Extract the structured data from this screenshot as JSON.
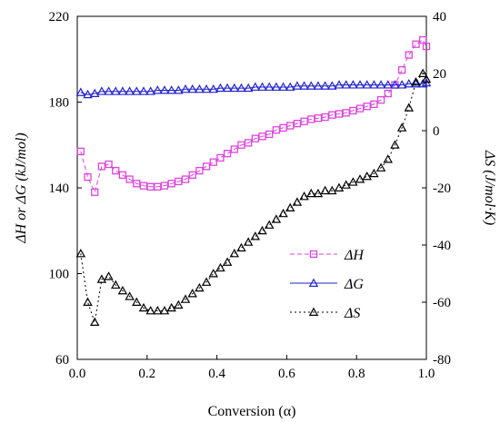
{
  "chart_data": {
    "type": "scatter",
    "xlabel": "Conversion (α)",
    "ylabel_left": "ΔH or ΔG  (kJ/mol)",
    "ylabel_right": "ΔS (J/mol·K)",
    "xlim": [
      0,
      1
    ],
    "ylim_left": [
      60,
      220
    ],
    "ylim_right": [
      -80,
      40
    ],
    "x_ticks": [
      "0.0",
      "0.2",
      "0.4",
      "0.6",
      "0.8",
      "1.0"
    ],
    "y_left_ticks": [
      "60",
      "100",
      "140",
      "180",
      "220"
    ],
    "y_right_ticks": [
      "-80",
      "-60",
      "-40",
      "-20",
      "0",
      "20",
      "40"
    ],
    "grid": false,
    "legend_position": "lower-right",
    "series": [
      {
        "name": "ΔH",
        "axis": "left",
        "color": "#dd44dd",
        "marker": "square",
        "line": "dashed",
        "x": [
          0.01,
          0.03,
          0.05,
          0.07,
          0.09,
          0.11,
          0.13,
          0.15,
          0.17,
          0.19,
          0.21,
          0.23,
          0.25,
          0.27,
          0.29,
          0.31,
          0.33,
          0.35,
          0.37,
          0.39,
          0.41,
          0.43,
          0.45,
          0.47,
          0.49,
          0.51,
          0.53,
          0.55,
          0.57,
          0.59,
          0.61,
          0.63,
          0.65,
          0.67,
          0.69,
          0.71,
          0.73,
          0.75,
          0.77,
          0.79,
          0.81,
          0.83,
          0.85,
          0.87,
          0.89,
          0.91,
          0.93,
          0.95,
          0.97,
          0.99,
          1.0
        ],
        "y": [
          157,
          145,
          138,
          150,
          151,
          148,
          146,
          144,
          142,
          141,
          140.5,
          140.5,
          141,
          142,
          143,
          144,
          146,
          148,
          150,
          152,
          154,
          156,
          158,
          160,
          161,
          163,
          164,
          165,
          167,
          168,
          169,
          170,
          171,
          172,
          172.5,
          173,
          174,
          174.5,
          175,
          176,
          177,
          178,
          179,
          181,
          184,
          188,
          195,
          202,
          207,
          209,
          206
        ]
      },
      {
        "name": "ΔG",
        "axis": "left",
        "color": "#2222cc",
        "marker": "triangle",
        "line": "solid",
        "x": [
          0.01,
          0.03,
          0.05,
          0.07,
          0.09,
          0.11,
          0.13,
          0.15,
          0.17,
          0.19,
          0.21,
          0.23,
          0.25,
          0.27,
          0.29,
          0.31,
          0.33,
          0.35,
          0.37,
          0.39,
          0.41,
          0.43,
          0.45,
          0.47,
          0.49,
          0.51,
          0.53,
          0.55,
          0.57,
          0.59,
          0.61,
          0.63,
          0.65,
          0.67,
          0.69,
          0.71,
          0.73,
          0.75,
          0.77,
          0.79,
          0.81,
          0.83,
          0.85,
          0.87,
          0.89,
          0.91,
          0.93,
          0.95,
          0.97,
          0.99,
          1.0
        ],
        "y": [
          184.5,
          183.5,
          184,
          185,
          185,
          185,
          185,
          185,
          185,
          185,
          185,
          185.5,
          185.5,
          185.5,
          185.5,
          186,
          186,
          186,
          186,
          186,
          186.5,
          186.5,
          186.5,
          186.5,
          186.5,
          187,
          187,
          187,
          187,
          187,
          187,
          187.5,
          187.5,
          187.5,
          187.5,
          187.5,
          187.5,
          188,
          188,
          188,
          188,
          188,
          188,
          188,
          188,
          188,
          188,
          188.5,
          188.5,
          188.5,
          189
        ]
      },
      {
        "name": "ΔS",
        "axis": "right",
        "color": "#000000",
        "marker": "triangle",
        "line": "dotted",
        "x": [
          0.01,
          0.03,
          0.05,
          0.07,
          0.09,
          0.11,
          0.13,
          0.15,
          0.17,
          0.19,
          0.21,
          0.23,
          0.25,
          0.27,
          0.29,
          0.31,
          0.33,
          0.35,
          0.37,
          0.39,
          0.41,
          0.43,
          0.45,
          0.47,
          0.49,
          0.51,
          0.53,
          0.55,
          0.57,
          0.59,
          0.61,
          0.63,
          0.65,
          0.67,
          0.69,
          0.71,
          0.73,
          0.75,
          0.77,
          0.79,
          0.81,
          0.83,
          0.85,
          0.87,
          0.89,
          0.91,
          0.93,
          0.95,
          0.97,
          0.99,
          1.0
        ],
        "y": [
          -43,
          -60,
          -67,
          -52,
          -51,
          -54,
          -56,
          -58,
          -60,
          -62,
          -63,
          -63,
          -63,
          -62,
          -61,
          -59,
          -57,
          -55,
          -53,
          -50,
          -48,
          -46,
          -43,
          -41,
          -39,
          -37,
          -35,
          -33,
          -31,
          -29,
          -27,
          -25,
          -23,
          -22,
          -22,
          -21,
          -21,
          -20,
          -19,
          -18,
          -17,
          -16,
          -15,
          -13,
          -10,
          -5,
          1,
          8,
          17,
          20,
          18
        ]
      }
    ]
  }
}
